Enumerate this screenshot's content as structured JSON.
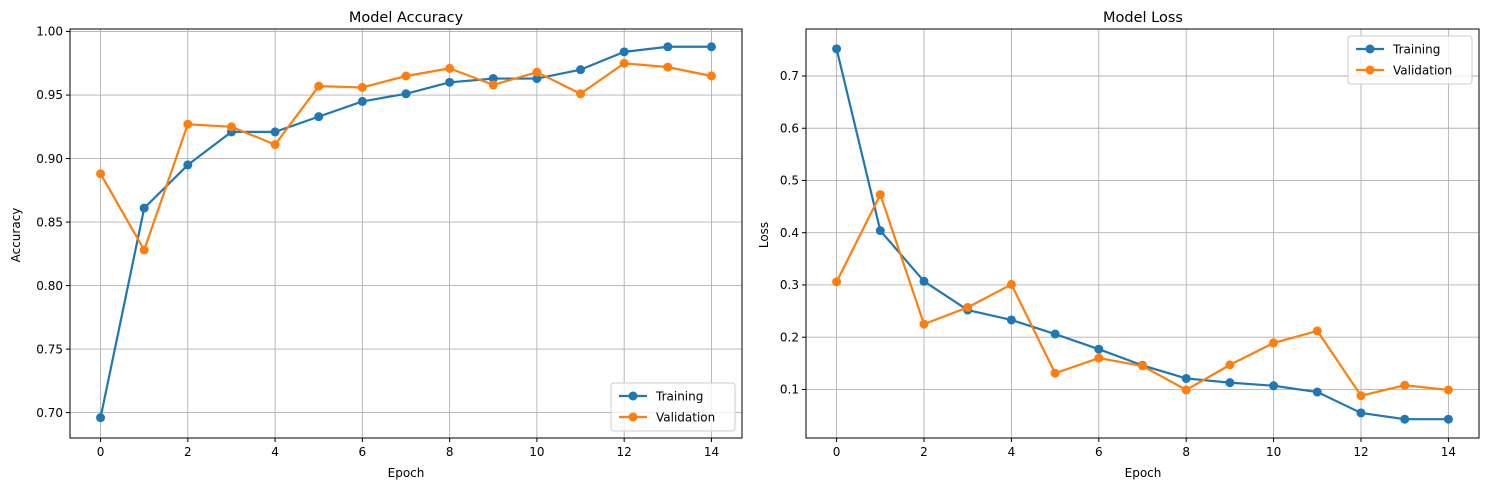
{
  "colors": {
    "training": "#1f77b4",
    "validation": "#ff7f0e",
    "grid": "#b0b0b0",
    "background": "#ffffff"
  },
  "chart_data": [
    {
      "type": "line",
      "title": "Model Accuracy",
      "xlabel": "Epoch",
      "ylabel": "Accuracy",
      "x": [
        0,
        1,
        2,
        3,
        4,
        5,
        6,
        7,
        8,
        9,
        10,
        11,
        12,
        13,
        14
      ],
      "xlim": [
        -0.7,
        14.7
      ],
      "ylim": [
        0.68,
        1.002
      ],
      "xticks": [
        0,
        2,
        4,
        6,
        8,
        10,
        12,
        14
      ],
      "xtick_labels": [
        "0",
        "2",
        "4",
        "6",
        "8",
        "10",
        "12",
        "14"
      ],
      "yticks": [
        0.7,
        0.75,
        0.8,
        0.85,
        0.9,
        0.95,
        1.0
      ],
      "ytick_labels": [
        "0.70",
        "0.75",
        "0.80",
        "0.85",
        "0.90",
        "0.95",
        "1.00"
      ],
      "grid": true,
      "legend_position": "lower-right",
      "series": [
        {
          "name": "Training",
          "color": "#1f77b4",
          "values": [
            0.696,
            0.861,
            0.895,
            0.921,
            0.921,
            0.933,
            0.945,
            0.951,
            0.96,
            0.963,
            0.963,
            0.97,
            0.984,
            0.988,
            0.988
          ]
        },
        {
          "name": "Validation",
          "color": "#ff7f0e",
          "values": [
            0.888,
            0.828,
            0.927,
            0.925,
            0.911,
            0.957,
            0.956,
            0.965,
            0.971,
            0.958,
            0.968,
            0.951,
            0.975,
            0.972,
            0.965
          ]
        }
      ]
    },
    {
      "type": "line",
      "title": "Model Loss",
      "xlabel": "Epoch",
      "ylabel": "Loss",
      "x": [
        0,
        1,
        2,
        3,
        4,
        5,
        6,
        7,
        8,
        9,
        10,
        11,
        12,
        13,
        14
      ],
      "xlim": [
        -0.7,
        14.7
      ],
      "ylim": [
        0.007,
        0.79
      ],
      "xticks": [
        0,
        2,
        4,
        6,
        8,
        10,
        12,
        14
      ],
      "xtick_labels": [
        "0",
        "2",
        "4",
        "6",
        "8",
        "10",
        "12",
        "14"
      ],
      "yticks": [
        0.1,
        0.2,
        0.3,
        0.4,
        0.5,
        0.6,
        0.7
      ],
      "ytick_labels": [
        "0.1",
        "0.2",
        "0.3",
        "0.4",
        "0.5",
        "0.6",
        "0.7"
      ],
      "grid": true,
      "legend_position": "top-right",
      "series": [
        {
          "name": "Training",
          "color": "#1f77b4",
          "values": [
            0.752,
            0.404,
            0.307,
            0.252,
            0.233,
            0.206,
            0.177,
            0.146,
            0.121,
            0.113,
            0.107,
            0.095,
            0.055,
            0.043,
            0.043
          ]
        },
        {
          "name": "Validation",
          "color": "#ff7f0e",
          "values": [
            0.306,
            0.473,
            0.225,
            0.257,
            0.301,
            0.131,
            0.16,
            0.145,
            0.099,
            0.147,
            0.189,
            0.212,
            0.088,
            0.108,
            0.099
          ]
        }
      ]
    }
  ]
}
